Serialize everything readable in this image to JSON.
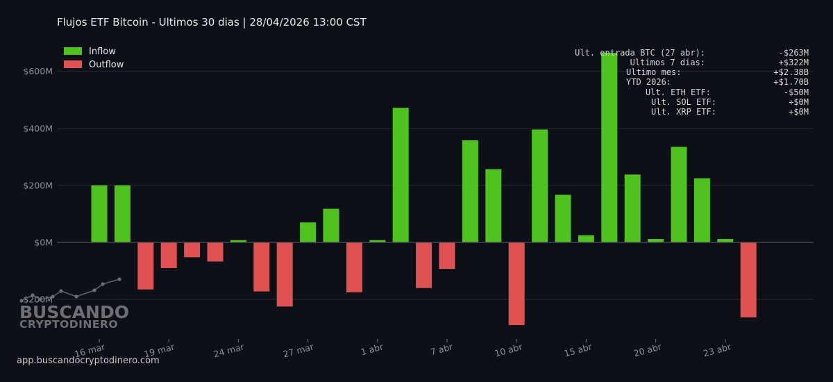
{
  "header": {
    "title": "Flujos ETF Bitcoin - Ultimos 30 dias  |  28/04/2026 13:00 CST"
  },
  "legend": {
    "items": [
      {
        "label": "Inflow",
        "color": "#4fc21f"
      },
      {
        "label": "Outflow",
        "color": "#e05252"
      }
    ]
  },
  "stats": [
    {
      "label": "Ult. entrada BTC (27 abr):",
      "value": "-$263M"
    },
    {
      "label": "Ultimos 7 dias:",
      "value": "+$322M"
    },
    {
      "label": "Ultimo mes:",
      "value": "+$2.38B"
    },
    {
      "label": "YTD 2026:",
      "value": "+$1.70B"
    },
    {
      "label": "Ult. ETH ETF:",
      "value": "-$50M"
    },
    {
      "label": "Ult. SOL ETF:",
      "value": "+$0M"
    },
    {
      "label": "Ult. XRP ETF:",
      "value": "+$0M"
    }
  ],
  "footer": {
    "url": "app.buscandocryptodinero.com"
  },
  "logo": {
    "line1": "BUSCANDO",
    "line2": "CRYPTODINERO"
  },
  "colors": {
    "inflow": "#4fc21f",
    "outflow": "#e05252",
    "background": "#0d1016",
    "grid": "#262b33",
    "zero_line": "#4a4f58"
  },
  "chart_data": {
    "type": "bar",
    "y_unit": "USD millions",
    "ylim": [
      -320,
      690
    ],
    "y_ticks": [
      -200,
      0,
      200,
      400,
      600
    ],
    "y_tick_labels": [
      "-$200M",
      "$0M",
      "$200M",
      "$400M",
      "$600M"
    ],
    "x_tick_labels": [
      "16 mar",
      "19 mar",
      "24 mar",
      "27 mar",
      "1 abr",
      "7 abr",
      "10 abr",
      "15 abr",
      "20 abr",
      "23 abr"
    ],
    "x_tick_bar_index": [
      0,
      3,
      6,
      9,
      12,
      15,
      18,
      21,
      24,
      27
    ],
    "grid": true,
    "legend_position": "top-left",
    "values": [
      200,
      200,
      -165,
      -90,
      -52,
      -67,
      8,
      -172,
      -225,
      70,
      118,
      -175,
      8,
      472,
      -160,
      -93,
      358,
      257,
      -290,
      396,
      167,
      25,
      665,
      238,
      12,
      335,
      225,
      12,
      -263
    ]
  }
}
